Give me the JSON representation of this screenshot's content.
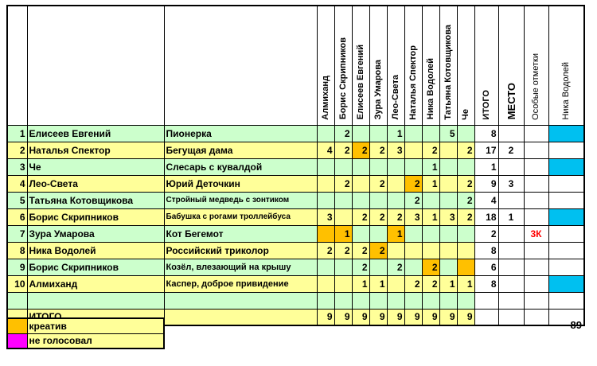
{
  "colors": {
    "row_green": "#ccffcc",
    "row_yellow": "#ffff99",
    "creative_orange": "#ffc000",
    "no_vote_magenta": "#ff00ff",
    "mark_cyan": "#00c0f0",
    "note_red": "#ff0000",
    "cell_white": "#ffffff",
    "grid_black": "#000000"
  },
  "table": {
    "voter_columns": [
      "Алмиханд",
      "Борис Скрипников",
      "Елисеев Евгений",
      "Зура Умарова",
      "Лео-Света",
      "Наталья Спектор",
      "Ника Водолей",
      "Татьяна Котовщикова",
      "Че"
    ],
    "summary_columns": [
      "ИТОГО",
      "МЕСТО",
      "Особые отметки",
      "Ника Водолей"
    ],
    "rows": [
      {
        "num": "1",
        "name": "Елисеев Евгений",
        "title": "Пионерка",
        "votes": [
          "",
          "2",
          "",
          "",
          "1",
          "",
          "",
          "5",
          ""
        ],
        "creative": [],
        "itogo": "8",
        "mesto": "",
        "note": "",
        "cyan": true
      },
      {
        "num": "2",
        "name": "Наталья Спектор",
        "title": "Бегущая дама",
        "votes": [
          "4",
          "2",
          "2",
          "2",
          "3",
          "",
          "2",
          "",
          "2"
        ],
        "creative": [
          2
        ],
        "itogo": "17",
        "mesto": "2",
        "note": "",
        "cyan": false
      },
      {
        "num": "3",
        "name": "Че",
        "title": "Слесарь с кувалдой",
        "votes": [
          "",
          "",
          "",
          "",
          "",
          "",
          "1",
          "",
          ""
        ],
        "creative": [],
        "itogo": "1",
        "mesto": "",
        "note": "",
        "cyan": true
      },
      {
        "num": "4",
        "name": "Лео-Света",
        "title": "Юрий Деточкин",
        "votes": [
          "",
          "2",
          "",
          "2",
          "",
          "2",
          "1",
          "",
          "2"
        ],
        "creative": [
          5
        ],
        "itogo": "9",
        "mesto": "3",
        "note": "",
        "cyan": false
      },
      {
        "num": "5",
        "name": "Татьяна Котовщикова",
        "title": "Стройный медведь с зонтиком",
        "votes": [
          "",
          "",
          "",
          "",
          "",
          "2",
          "",
          "",
          "2"
        ],
        "creative": [],
        "itogo": "4",
        "mesto": "",
        "note": "",
        "cyan": false
      },
      {
        "num": "6",
        "name": "Борис Скрипников",
        "title": "Бабушка с рогами троллейбуса",
        "votes": [
          "3",
          "",
          "2",
          "2",
          "2",
          "3",
          "1",
          "3",
          "2"
        ],
        "creative": [],
        "itogo": "18",
        "mesto": "1",
        "note": "",
        "cyan": true
      },
      {
        "num": "7",
        "name": "Зура Умарова",
        "title": "Кот Бегемот",
        "votes": [
          "",
          "1",
          "",
          "",
          "1",
          "",
          "",
          "",
          ""
        ],
        "creative": [
          0,
          1,
          4
        ],
        "itogo": "2",
        "mesto": "",
        "note": "3К",
        "cyan": false
      },
      {
        "num": "8",
        "name": "Ника Водолей",
        "title": "Российский триколор",
        "votes": [
          "2",
          "2",
          "2",
          "2",
          "",
          "",
          "",
          "",
          ""
        ],
        "creative": [
          3
        ],
        "itogo": "8",
        "mesto": "",
        "note": "",
        "cyan": false
      },
      {
        "num": "9",
        "name": "Борис Скрипников",
        "title": "Козёл, влезающий на крышу",
        "votes": [
          "",
          "",
          "2",
          "",
          "2",
          "",
          "2",
          "",
          ""
        ],
        "creative": [
          6,
          8
        ],
        "itogo": "6",
        "mesto": "",
        "note": "",
        "cyan": false
      },
      {
        "num": "10",
        "name": "Алмиханд",
        "title": "Каспер, доброе привидение",
        "votes": [
          "",
          "",
          "1",
          "1",
          "",
          "2",
          "2",
          "1",
          "1"
        ],
        "creative": [],
        "itogo": "8",
        "mesto": "",
        "note": "",
        "cyan": true
      }
    ],
    "totals_label": "ИТОГО",
    "totals": [
      "9",
      "9",
      "9",
      "9",
      "9",
      "9",
      "9",
      "9",
      "9"
    ]
  },
  "legend": {
    "items": [
      {
        "label": "креатив",
        "color": "#ffc000"
      },
      {
        "label": "не голосовал",
        "color": "#ff00ff"
      }
    ]
  },
  "footer": {
    "value": "89"
  }
}
